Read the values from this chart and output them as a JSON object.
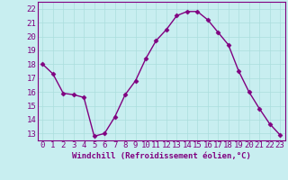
{
  "x": [
    0,
    1,
    2,
    3,
    4,
    5,
    6,
    7,
    8,
    9,
    10,
    11,
    12,
    13,
    14,
    15,
    16,
    17,
    18,
    19,
    20,
    21,
    22,
    23
  ],
  "y": [
    18.0,
    17.3,
    15.9,
    15.8,
    15.6,
    12.8,
    13.0,
    14.2,
    15.8,
    16.8,
    18.4,
    19.7,
    20.5,
    21.5,
    21.8,
    21.8,
    21.2,
    20.3,
    19.4,
    17.5,
    16.0,
    14.8,
    13.7,
    12.9
  ],
  "line_color": "#800080",
  "marker": "D",
  "marker_size": 2.5,
  "linewidth": 1.0,
  "xlabel": "Windchill (Refroidissement éolien,°C)",
  "xlim": [
    -0.5,
    23.5
  ],
  "ylim": [
    12.5,
    22.5
  ],
  "yticks": [
    13,
    14,
    15,
    16,
    17,
    18,
    19,
    20,
    21,
    22
  ],
  "xticks": [
    0,
    1,
    2,
    3,
    4,
    5,
    6,
    7,
    8,
    9,
    10,
    11,
    12,
    13,
    14,
    15,
    16,
    17,
    18,
    19,
    20,
    21,
    22,
    23
  ],
  "bg_color": "#c8eef0",
  "grid_color": "#aadddd",
  "tick_color": "#800080",
  "label_color": "#800080",
  "xlabel_fontsize": 6.5,
  "tick_fontsize": 6.5
}
